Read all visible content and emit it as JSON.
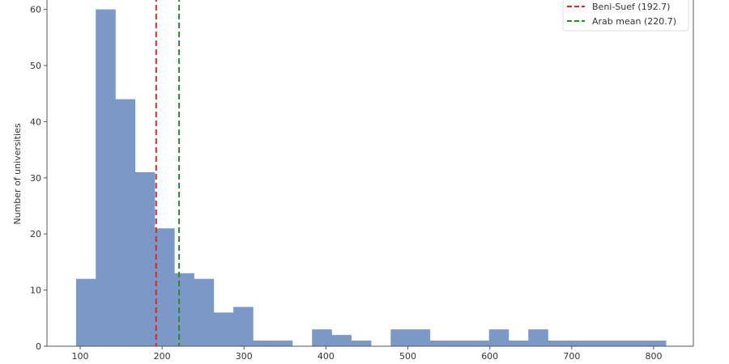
{
  "chart_data": {
    "type": "bar",
    "subtype": "histogram",
    "title": "",
    "xlabel": "",
    "ylabel": "Number of universities",
    "xlim": [
      35,
      850
    ],
    "ylim": [
      0,
      63
    ],
    "xticks": [
      100,
      200,
      300,
      400,
      500,
      600,
      700,
      800
    ],
    "yticks": [
      0,
      10,
      20,
      30,
      40,
      50,
      60
    ],
    "bin_edges": [
      95,
      119,
      143,
      167,
      191,
      215,
      239,
      263,
      287,
      311,
      335,
      359,
      383,
      407,
      431,
      455,
      479,
      503,
      527,
      551,
      575,
      599,
      623,
      647,
      671,
      695,
      719,
      743,
      767,
      791,
      815
    ],
    "counts": [
      12,
      60,
      44,
      31,
      21,
      13,
      12,
      6,
      7,
      1,
      1,
      0,
      3,
      2,
      1,
      0,
      3,
      3,
      1,
      1,
      1,
      3,
      1,
      3,
      1,
      1,
      1,
      1,
      1,
      1
    ],
    "bar_color": "#7b98c6",
    "grid": false,
    "legend_position": "top-right",
    "reference_lines": [
      {
        "label": "Beni-Suef (192.7)",
        "x": 192.7,
        "color": "#d62728",
        "style": "dashed"
      },
      {
        "label": "Arab mean (220.7)",
        "x": 220.7,
        "color": "#2a8a2a",
        "style": "dashed"
      }
    ]
  }
}
